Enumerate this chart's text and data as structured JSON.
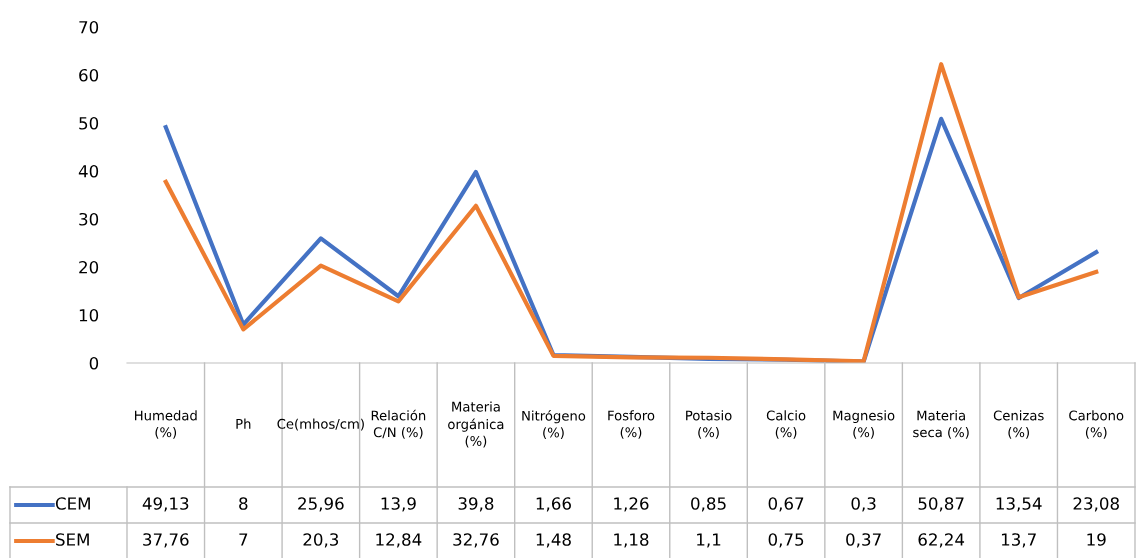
{
  "chart_data": {
    "type": "line",
    "categories": [
      "Humedad (%)",
      "Ph",
      "Ce(mhos/cm)",
      "Relación C/N (%)",
      "Materia orgánica (%)",
      "Nitrógeno (%)",
      "Fosforo (%)",
      "Potasio (%)",
      "Calcio (%)",
      "Magnesio (%)",
      "Materia seca (%)",
      "Cenizas (%)",
      "Carbono (%)"
    ],
    "series": [
      {
        "name": "CEM",
        "color": "#4472c4",
        "values": [
          49.13,
          8,
          25.96,
          13.9,
          39.8,
          1.66,
          1.26,
          0.85,
          0.67,
          0.3,
          50.87,
          13.54,
          23.08
        ],
        "value_labels": [
          "49,13",
          "8",
          "25,96",
          "13,9",
          "39,8",
          "1,66",
          "1,26",
          "0,85",
          "0,67",
          "0,3",
          "50,87",
          "13,54",
          "23,08"
        ]
      },
      {
        "name": "SEM",
        "color": "#ed7d31",
        "values": [
          37.76,
          7,
          20.3,
          12.84,
          32.76,
          1.48,
          1.18,
          1.1,
          0.75,
          0.37,
          62.24,
          13.7,
          19
        ],
        "value_labels": [
          "37,76",
          "7",
          "20,3",
          "12,84",
          "32,76",
          "1,48",
          "1,18",
          "1,1",
          "0,75",
          "0,37",
          "62,24",
          "13,7",
          "19"
        ]
      }
    ],
    "ylim": [
      0,
      70
    ],
    "yticks": [
      0,
      10,
      20,
      30,
      40,
      50,
      60,
      70
    ],
    "grid": false,
    "legend": "bottom",
    "marker": "none",
    "line_style": "solid"
  }
}
